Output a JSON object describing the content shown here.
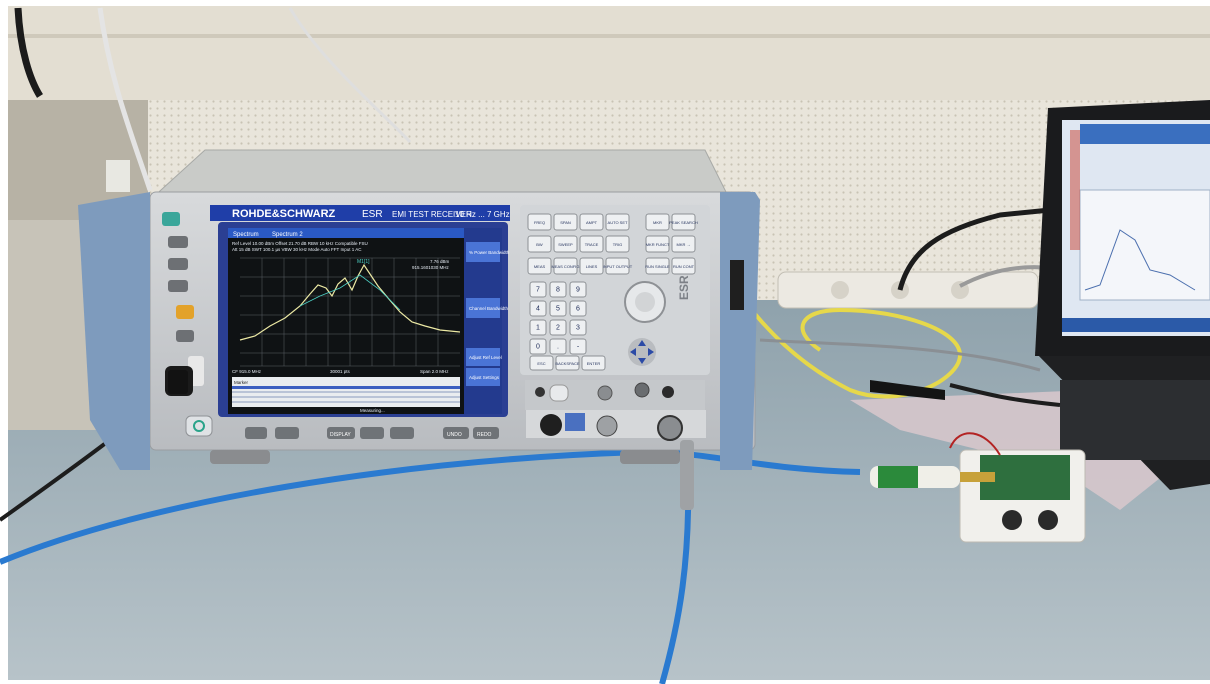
{
  "instrument": {
    "brand": "ROHDE&SCHWARZ",
    "model": "ESR",
    "description": "EMI TEST RECEIVER",
    "range": "10 Hz ... 7 GHz",
    "side_badge": "ESR"
  },
  "screen": {
    "tabs": [
      "Spectrum",
      "Spectrum 2"
    ],
    "header_line1": "Ref Level  10.00 dBm   Offset 21.70 dB   RBW 10 kHz   Compatible   FSU",
    "header_line2": "Att  15 dB   SWT 100.1 µs   VBW 30 kHz   Mode Auto FFT   Input 1 AC",
    "marker_label": "M1[1]",
    "marker_readout": [
      "7.76 dBm",
      "915.1601030 MHz"
    ],
    "footer_left": "CF 915.0 MHz",
    "footer_center": "30001 pts",
    "footer_right": "Span 2.0 MHz",
    "table_title": "Marker",
    "status": "Measuring...",
    "softkeys": [
      "% Power Bandwidth",
      "Channel Bandwidth",
      "Adjust Ref Level",
      "Adjust Settings"
    ]
  },
  "front_panel": {
    "keys_row1": [
      "FREQ",
      "SPAN",
      "AMPT",
      "AUTO SET",
      "MKR",
      "PEAK SEARCH"
    ],
    "keys_row2": [
      "BW",
      "SWEEP",
      "TRACE",
      "TRIG",
      "MKR FUNCT",
      "MKR →"
    ],
    "keys_row3": [
      "MEAS",
      "MEAS CONFIG",
      "LINES",
      "INPUT OUTPUT",
      "RUN SINGLE",
      "RUN CONT"
    ],
    "digits": [
      "7",
      "8",
      "9",
      "4",
      "5",
      "6",
      "1",
      "2",
      "3",
      "0",
      ".",
      "-"
    ],
    "bottom_keys": [
      "ESC",
      "BACKSPACE",
      "ENTER"
    ],
    "lower_buttons": [
      "DISPLAY",
      "UNDO",
      "REDO"
    ]
  },
  "colors": {
    "wall": "#e6e2d6",
    "desk": "#a8b6be",
    "instrument_body": "#c9ccd0",
    "handle": "#7e9bbd",
    "screen_blue": "#1f3ea8",
    "plot_bg": "#0e1212",
    "trace": "#ece9a4",
    "cable_blue": "#2a7ad0",
    "cable_yellow": "#e6d84a",
    "laptop": "#222426"
  }
}
